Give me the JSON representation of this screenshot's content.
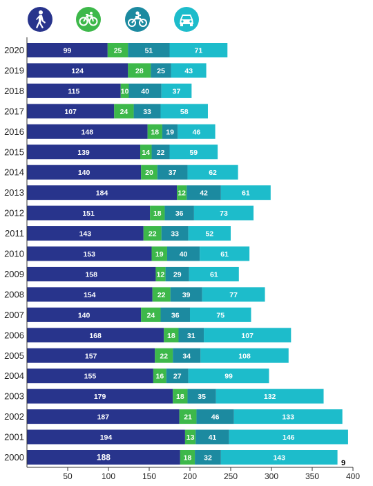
{
  "colors": {
    "pedestrian": "#28348c",
    "cyclist": "#3db84a",
    "motorcyclist": "#1c8aa0",
    "car": "#1dbccb",
    "axis": "#333333",
    "label_dark": "#ffffff"
  },
  "icons": [
    {
      "name": "pedestrian-icon",
      "color": "#28348c"
    },
    {
      "name": "bicycle-icon",
      "color": "#3db84a"
    },
    {
      "name": "motorcycle-icon",
      "color": "#1c8aa0"
    },
    {
      "name": "car-icon",
      "color": "#1dbccb"
    }
  ],
  "page_number": "9",
  "chart_data": {
    "type": "bar",
    "orientation": "horizontal",
    "stacked": true,
    "categories": [
      "2020",
      "2019",
      "2018",
      "2017",
      "2016",
      "2015",
      "2014",
      "2013",
      "2012",
      "2011",
      "2010",
      "2009",
      "2008",
      "2007",
      "2006",
      "2005",
      "2004",
      "2003",
      "2002",
      "2001",
      "2000"
    ],
    "series": [
      {
        "key": "pedestrian",
        "values": [
          99,
          124,
          115,
          107,
          148,
          139,
          140,
          184,
          151,
          143,
          153,
          158,
          154,
          140,
          168,
          157,
          155,
          179,
          187,
          194,
          188
        ]
      },
      {
        "key": "cyclist",
        "values": [
          25,
          28,
          10,
          24,
          18,
          14,
          20,
          12,
          18,
          22,
          19,
          12,
          22,
          24,
          18,
          22,
          16,
          18,
          21,
          13,
          18
        ]
      },
      {
        "key": "motorcyclist",
        "values": [
          51,
          25,
          40,
          33,
          19,
          22,
          37,
          42,
          36,
          33,
          40,
          29,
          39,
          36,
          31,
          34,
          27,
          35,
          46,
          41,
          32
        ]
      },
      {
        "key": "car",
        "values": [
          71,
          43,
          37,
          58,
          46,
          59,
          62,
          61,
          73,
          52,
          61,
          61,
          77,
          75,
          107,
          108,
          99,
          132,
          133,
          146,
          143
        ]
      }
    ],
    "x_ticks": [
      50,
      100,
      150,
      200,
      250,
      300,
      350,
      400
    ],
    "xlim": [
      0,
      400
    ],
    "title": "",
    "xlabel": "",
    "ylabel": ""
  }
}
